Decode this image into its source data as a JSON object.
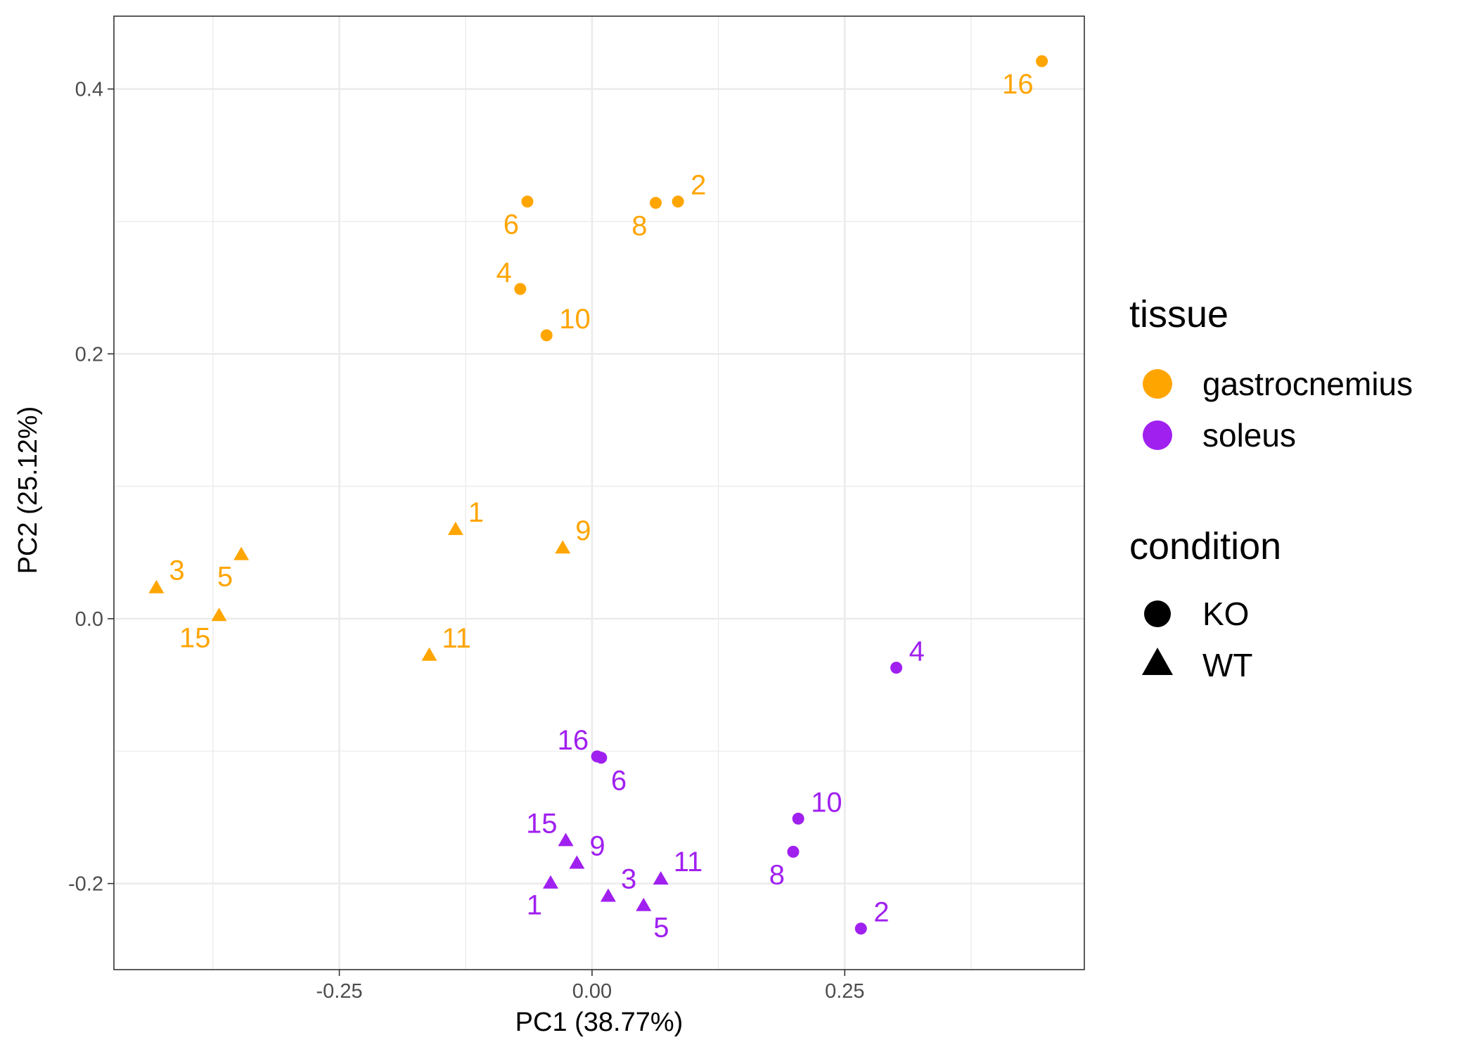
{
  "colors": {
    "gastrocnemius": "#FFA500",
    "soleus": "#A020F0",
    "grid": "#EBEBEB",
    "frame": "#333333"
  },
  "legend": {
    "tissue_title": "tissue",
    "tissue_items": [
      {
        "label": "gastrocnemius",
        "color": "#FFA500"
      },
      {
        "label": "soleus",
        "color": "#A020F0"
      }
    ],
    "condition_title": "condition",
    "condition_items": [
      {
        "label": "KO",
        "shape": "circle"
      },
      {
        "label": "WT",
        "shape": "triangle"
      }
    ]
  },
  "chart_data": {
    "type": "scatter",
    "xlabel": "PC1 (38.77%)",
    "ylabel": "PC2 (25.12%)",
    "xlim": [
      -0.473,
      0.487
    ],
    "ylim": [
      -0.265,
      0.455
    ],
    "xticks": [
      -0.25,
      0.0,
      0.25
    ],
    "xtick_labels": [
      "-0.25",
      "0.00",
      "0.25"
    ],
    "yticks": [
      -0.2,
      0.0,
      0.2,
      0.4
    ],
    "ytick_labels": [
      "-0.2",
      "0.0",
      "0.2",
      "0.4"
    ],
    "grid": true,
    "legend_position": "right",
    "points": [
      {
        "label": "16",
        "x": 0.445,
        "y": 0.421,
        "tissue": "gastrocnemius",
        "condition": "KO",
        "anchor": "lower-left"
      },
      {
        "label": "2",
        "x": 0.085,
        "y": 0.315,
        "tissue": "gastrocnemius",
        "condition": "KO",
        "anchor": "upper-right"
      },
      {
        "label": "8",
        "x": 0.063,
        "y": 0.314,
        "tissue": "gastrocnemius",
        "condition": "KO",
        "anchor": "lower-left"
      },
      {
        "label": "6",
        "x": -0.064,
        "y": 0.315,
        "tissue": "gastrocnemius",
        "condition": "KO",
        "anchor": "lower-left"
      },
      {
        "label": "4",
        "x": -0.071,
        "y": 0.249,
        "tissue": "gastrocnemius",
        "condition": "KO",
        "anchor": "upper-left"
      },
      {
        "label": "10",
        "x": -0.045,
        "y": 0.214,
        "tissue": "gastrocnemius",
        "condition": "KO",
        "anchor": "upper-right"
      },
      {
        "label": "1",
        "x": -0.135,
        "y": 0.068,
        "tissue": "gastrocnemius",
        "condition": "WT",
        "anchor": "upper-right"
      },
      {
        "label": "9",
        "x": -0.029,
        "y": 0.054,
        "tissue": "gastrocnemius",
        "condition": "WT",
        "anchor": "upper-right"
      },
      {
        "label": "3",
        "x": -0.431,
        "y": 0.024,
        "tissue": "gastrocnemius",
        "condition": "WT",
        "anchor": "upper-right"
      },
      {
        "label": "5",
        "x": -0.347,
        "y": 0.049,
        "tissue": "gastrocnemius",
        "condition": "WT",
        "anchor": "lower-left"
      },
      {
        "label": "15",
        "x": -0.369,
        "y": 0.003,
        "tissue": "gastrocnemius",
        "condition": "WT",
        "anchor": "lower-left"
      },
      {
        "label": "11",
        "x": -0.161,
        "y": -0.027,
        "tissue": "gastrocnemius",
        "condition": "WT",
        "anchor": "upper-right"
      },
      {
        "label": "4",
        "x": 0.301,
        "y": -0.037,
        "tissue": "soleus",
        "condition": "KO",
        "anchor": "upper-right"
      },
      {
        "label": "16",
        "x": 0.005,
        "y": -0.104,
        "tissue": "soleus",
        "condition": "KO",
        "anchor": "upper-left"
      },
      {
        "label": "6",
        "x": 0.009,
        "y": -0.105,
        "tissue": "soleus",
        "condition": "KO",
        "anchor": "lower-right"
      },
      {
        "label": "10",
        "x": 0.204,
        "y": -0.151,
        "tissue": "soleus",
        "condition": "KO",
        "anchor": "upper-right"
      },
      {
        "label": "8",
        "x": 0.199,
        "y": -0.176,
        "tissue": "soleus",
        "condition": "KO",
        "anchor": "lower-left"
      },
      {
        "label": "2",
        "x": 0.266,
        "y": -0.234,
        "tissue": "soleus",
        "condition": "KO",
        "anchor": "upper-right"
      },
      {
        "label": "15",
        "x": -0.026,
        "y": -0.167,
        "tissue": "soleus",
        "condition": "WT",
        "anchor": "upper-left"
      },
      {
        "label": "9",
        "x": -0.015,
        "y": -0.184,
        "tissue": "soleus",
        "condition": "WT",
        "anchor": "upper-right"
      },
      {
        "label": "1",
        "x": -0.041,
        "y": -0.199,
        "tissue": "soleus",
        "condition": "WT",
        "anchor": "lower-left"
      },
      {
        "label": "3",
        "x": 0.016,
        "y": -0.209,
        "tissue": "soleus",
        "condition": "WT",
        "anchor": "upper-right"
      },
      {
        "label": "11",
        "x": 0.068,
        "y": -0.196,
        "tissue": "soleus",
        "condition": "WT",
        "anchor": "upper-right"
      },
      {
        "label": "5",
        "x": 0.051,
        "y": -0.216,
        "tissue": "soleus",
        "condition": "WT",
        "anchor": "lower-right"
      }
    ]
  }
}
